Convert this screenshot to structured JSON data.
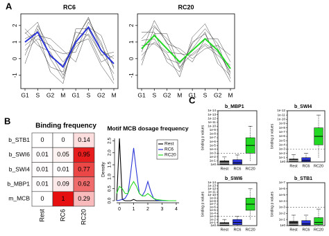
{
  "panel_labels": [
    "A",
    "B",
    "C"
  ],
  "chart_data": [
    {
      "type": "line",
      "title": "RC6",
      "categories": [
        "G1",
        "S",
        "G2",
        "M",
        "G1",
        "S",
        "G2",
        "M"
      ],
      "ylim": [
        -1.8,
        2.7
      ],
      "yticks": [
        -1,
        0,
        1,
        2
      ],
      "background_color": "#000000",
      "background_lines": [
        [
          1.5,
          2.2,
          0.0,
          -1.2,
          1.2,
          2.4,
          0.8,
          -0.5
        ],
        [
          0.5,
          1.2,
          0.8,
          -0.2,
          0.7,
          1.5,
          0.3,
          -0.9
        ],
        [
          1.8,
          1.0,
          -0.5,
          -0.8,
          1.6,
          1.4,
          -0.2,
          0.2
        ],
        [
          0.2,
          2.0,
          0.6,
          0.3,
          0.4,
          2.2,
          1.0,
          -1.3
        ],
        [
          1.2,
          1.6,
          -0.8,
          -1.5,
          1.8,
          1.8,
          0.2,
          0.4
        ],
        [
          0.8,
          1.4,
          1.2,
          0.5,
          -0.2,
          1.9,
          1.4,
          -0.6
        ],
        [
          -0.3,
          1.8,
          0.1,
          -0.4,
          1.1,
          2.5,
          0.5,
          0.0
        ],
        [
          1.6,
          0.8,
          0.4,
          -1.0,
          0.9,
          1.2,
          -0.4,
          -1.5
        ]
      ],
      "series": [
        {
          "color": "#2b35d8",
          "values": [
            1.0,
            1.6,
            0.2,
            -0.5,
            1.0,
            1.9,
            0.5,
            -0.3
          ]
        }
      ]
    },
    {
      "type": "line",
      "title": "RC20",
      "categories": [
        "G1",
        "S",
        "G2",
        "M",
        "G1",
        "S",
        "G2",
        "M"
      ],
      "ylim": [
        -1.8,
        2.7
      ],
      "yticks": [
        -1,
        0,
        1,
        2
      ],
      "background_color": "#000000",
      "background_lines": [
        [
          1.2,
          2.0,
          1.0,
          -0.6,
          0.9,
          1.8,
          0.9,
          -1.2
        ],
        [
          0.2,
          1.0,
          0.4,
          0.3,
          0.2,
          0.8,
          0.2,
          -0.4
        ],
        [
          1.6,
          1.6,
          -0.2,
          -0.8,
          1.0,
          1.5,
          0.0,
          -1.4
        ],
        [
          -0.4,
          1.9,
          1.2,
          0.4,
          -0.2,
          1.2,
          1.2,
          -0.2
        ],
        [
          0.8,
          0.9,
          0.3,
          -1.1,
          1.3,
          2.1,
          0.6,
          -0.9
        ],
        [
          0.4,
          2.3,
          0.9,
          0.6,
          0.0,
          0.6,
          0.8,
          0.2
        ],
        [
          1.1,
          1.2,
          0.0,
          -0.3,
          0.6,
          1.6,
          -0.3,
          -1.0
        ],
        [
          -0.1,
          1.5,
          1.5,
          -0.5,
          0.3,
          0.9,
          0.4,
          -0.8
        ]
      ],
      "series": [
        {
          "color": "#22d822",
          "values": [
            0.6,
            1.4,
            0.6,
            -0.2,
            0.5,
            1.2,
            0.5,
            -0.6
          ]
        }
      ]
    },
    {
      "type": "heatmap",
      "title": "Binding frequency",
      "rows": [
        "b_STB1",
        "b_SWI6",
        "b_SWI4",
        "b_MBP1",
        "m_MCB"
      ],
      "columns": [
        "Rest",
        "RC6",
        "RC20"
      ],
      "color": "#e61010",
      "values": [
        [
          0,
          0,
          0.14
        ],
        [
          0.01,
          0.05,
          0.95
        ],
        [
          0.01,
          0.01,
          0.77
        ],
        [
          0.01,
          0.09,
          0.62
        ],
        [
          0,
          1,
          0.29
        ]
      ]
    },
    {
      "type": "density",
      "title": "Motif MCB dosage frequency",
      "ylabel": "Density",
      "legend": "top-right",
      "x": [
        -0.2,
        0,
        0.2,
        0.4,
        0.6,
        0.8,
        1,
        1.2,
        1.4,
        1.6,
        1.8,
        2,
        2.2,
        2.4,
        2.6,
        3,
        3.5,
        4
      ],
      "xlim": [
        -0.2,
        4.2
      ],
      "xticks": [
        0,
        1,
        2,
        3,
        4
      ],
      "ylim": [
        0,
        2.6
      ],
      "yticks": [
        {
          "value": 0,
          "label": "0.0"
        },
        0.5,
        {
          "value": 1,
          "label": "1.0"
        },
        1.5,
        {
          "value": 2,
          "label": "2.0"
        },
        2.5
      ],
      "series": [
        {
          "name": "Rest",
          "color": "#000000",
          "values": [
            0,
            2.6,
            0.05,
            0,
            0,
            0,
            0.05,
            0,
            0,
            0,
            0,
            0,
            0,
            0,
            0,
            0,
            0,
            0
          ]
        },
        {
          "name": "RC6",
          "color": "#2b35d8",
          "values": [
            0,
            0.02,
            0.05,
            0.1,
            0.3,
            1.2,
            2.2,
            1.2,
            0.3,
            0.2,
            0.4,
            0.8,
            0.4,
            0.1,
            0.02,
            0,
            0,
            0
          ]
        },
        {
          "name": "RC20",
          "color": "#22d822",
          "values": [
            0.3,
            0.6,
            0.5,
            0.3,
            0.3,
            0.6,
            0.8,
            0.6,
            0.3,
            0.2,
            0.2,
            0.3,
            0.2,
            0.1,
            0.05,
            0.02,
            0,
            0
          ]
        }
      ]
    },
    {
      "type": "box",
      "title": "b_MBP1",
      "ylabel": "binding p values",
      "log_scale": true,
      "categories": [
        "Rest",
        "RC6",
        "RC20"
      ],
      "colors": [
        "#222222",
        "#2b35d8",
        "#22d822"
      ],
      "threshold": 0.001,
      "ylim": [
        1,
        1e-14
      ],
      "yticks": [
        {
          "value": 1,
          "label": "1e0"
        },
        {
          "value": 0.1,
          "label": "1e-1"
        },
        {
          "value": 0.01,
          "label": "1e-2"
        },
        {
          "value": 0.001,
          "label": "1e-3"
        },
        {
          "value": 0.0001,
          "label": "1e-4"
        },
        {
          "value": 1e-05,
          "label": "1e-5"
        },
        {
          "value": 1e-06,
          "label": "1e-6"
        },
        {
          "value": 1e-07,
          "label": "1e-7"
        },
        {
          "value": 1e-08,
          "label": "1e-8"
        },
        {
          "value": 1e-09,
          "label": "1e-9"
        },
        {
          "value": 1e-10,
          "label": "1e-10"
        },
        {
          "value": 1e-11,
          "label": "1e-11"
        },
        {
          "value": 1e-12,
          "label": "1e-12"
        },
        {
          "value": 1e-13,
          "label": "1e-13"
        },
        {
          "value": 1e-14,
          "label": "1e-14"
        }
      ],
      "whisker_bottom": [
        1,
        1,
        0.1
      ],
      "box_bottom": [
        0.8,
        0.7,
        0.001
      ],
      "median": [
        0.4,
        0.3,
        1e-05
      ],
      "box_top": [
        0.1,
        0.05,
        1e-07
      ],
      "whisker_top": [
        0.01,
        0.003,
        1e-10
      ]
    },
    {
      "type": "box",
      "title": "b_SWI4",
      "ylabel": "binding p values",
      "log_scale": true,
      "categories": [
        "Rest",
        "RC6",
        "RC20"
      ],
      "colors": [
        "#222222",
        "#2b35d8",
        "#22d822"
      ],
      "threshold": 0.001,
      "ylim": [
        1,
        1e-12
      ],
      "yticks": [
        {
          "value": 1,
          "label": "1e0"
        },
        {
          "value": 0.1,
          "label": "1e-1"
        },
        {
          "value": 0.01,
          "label": "1e-2"
        },
        {
          "value": 0.001,
          "label": "1e-3"
        },
        {
          "value": 0.0001,
          "label": "1e-4"
        },
        {
          "value": 1e-05,
          "label": "1e-5"
        },
        {
          "value": 1e-06,
          "label": "1e-6"
        },
        {
          "value": 1e-07,
          "label": "1e-7"
        },
        {
          "value": 1e-08,
          "label": "1e-8"
        },
        {
          "value": 1e-09,
          "label": "1e-9"
        },
        {
          "value": 1e-10,
          "label": "1e-10"
        },
        {
          "value": 1e-11,
          "label": "1e-11"
        },
        {
          "value": 1e-12,
          "label": "1e-12"
        }
      ],
      "whisker_bottom": [
        1,
        1,
        0.1
      ],
      "box_bottom": [
        0.9,
        0.8,
        0.0001
      ],
      "median": [
        0.5,
        0.4,
        1e-06
      ],
      "box_top": [
        0.2,
        0.1,
        1e-08
      ],
      "whisker_top": [
        0.02,
        0.01,
        1e-11
      ]
    },
    {
      "type": "box",
      "title": "b_SWI6",
      "ylabel": "binding p values",
      "log_scale": true,
      "categories": [
        "Rest",
        "RC6",
        "RC20"
      ],
      "colors": [
        "#222222",
        "#2b35d8",
        "#22d822"
      ],
      "threshold": 0.001,
      "ylim": [
        1,
        1e-14
      ],
      "yticks": [
        {
          "value": 1,
          "label": "1e0"
        },
        {
          "value": 0.1,
          "label": "1e-1"
        },
        {
          "value": 0.01,
          "label": "1e-2"
        },
        {
          "value": 0.001,
          "label": "1e-3"
        },
        {
          "value": 0.0001,
          "label": "1e-4"
        },
        {
          "value": 1e-05,
          "label": "1e-5"
        },
        {
          "value": 1e-06,
          "label": "1e-6"
        },
        {
          "value": 1e-07,
          "label": "1e-7"
        },
        {
          "value": 1e-08,
          "label": "1e-8"
        },
        {
          "value": 1e-09,
          "label": "1e-9"
        },
        {
          "value": 1e-10,
          "label": "1e-10"
        },
        {
          "value": 1e-11,
          "label": "1e-11"
        },
        {
          "value": 1e-12,
          "label": "1e-12"
        },
        {
          "value": 1e-13,
          "label": "1e-13"
        },
        {
          "value": 1e-14,
          "label": "1e-14"
        }
      ],
      "whisker_bottom": [
        1,
        1,
        0.01
      ],
      "box_bottom": [
        0.8,
        0.5,
        1e-05
      ],
      "median": [
        0.4,
        0.1,
        1e-07
      ],
      "box_top": [
        0.1,
        0.01,
        1e-09
      ],
      "whisker_top": [
        0.01,
        0.001,
        1e-12
      ]
    },
    {
      "type": "box",
      "title": "b_STB1",
      "ylabel": "binding p values",
      "log_scale": true,
      "categories": [
        "Rest",
        "RC6",
        "RC20"
      ],
      "colors": [
        "#222222",
        "#2b35d8",
        "#22d822"
      ],
      "threshold": 0.001,
      "ylim": [
        1,
        1e-07
      ],
      "yticks": [
        {
          "value": 1,
          "label": "1e0"
        },
        {
          "value": 0.1,
          "label": "1e-1"
        },
        {
          "value": 0.01,
          "label": "1e-2"
        },
        {
          "value": 0.001,
          "label": "1e-3"
        },
        {
          "value": 0.0001,
          "label": "1e-4"
        },
        {
          "value": 1e-05,
          "label": "1e-5"
        },
        {
          "value": 1e-06,
          "label": "1e-6"
        },
        {
          "value": 1e-07,
          "label": "1e-7"
        }
      ],
      "whisker_bottom": [
        1,
        1,
        1
      ],
      "box_bottom": [
        0.9,
        0.8,
        0.7
      ],
      "median": [
        0.6,
        0.5,
        0.3
      ],
      "box_top": [
        0.2,
        0.15,
        0.05
      ],
      "whisker_top": [
        0.02,
        0.02,
        0.002
      ]
    }
  ]
}
